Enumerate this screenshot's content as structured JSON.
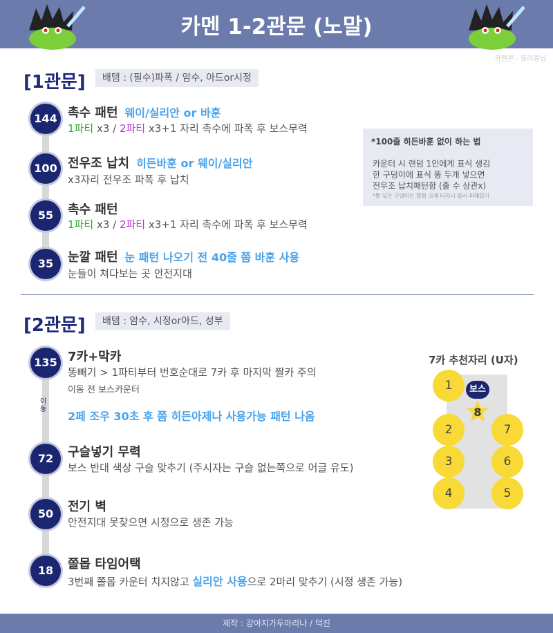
{
  "header": {
    "title": "카멘 1-2관문 (노말)",
    "credit": "카멘콘 - 또리콩님"
  },
  "gate1": {
    "title": "[1관문]",
    "equip": "배템 : (필수)파폭 / 암수, 아드or시정",
    "patterns": [
      {
        "hp": "144",
        "title": "촉수 패턴",
        "note": "웨이/실리안 or 바훈",
        "line_p1": "1파티",
        "line_mid": " x3 / ",
        "line_p2": "2파티",
        "line_rest": " x3+1 자리 촉수에 파폭 후 보스무력"
      },
      {
        "hp": "100",
        "title": "전우조 납치",
        "note": "히든바훈 or 웨이/실리안",
        "line": "x3자리 전우조 파폭 후 납치"
      },
      {
        "hp": "55",
        "title": "촉수 패턴",
        "line_p1": "1파티",
        "line_mid": " x3 / ",
        "line_p2": "2파티",
        "line_rest": " x3+1 자리 촉수에 파폭 후 보스무력"
      },
      {
        "hp": "35",
        "title": "눈깔 패턴",
        "note": "눈 패턴 나오기 전 40줄 쯤 바훈 사용",
        "line": "눈들이 쳐다보는 곳 안전지대"
      }
    ],
    "side": {
      "title": "*100줄 히든바훈 없이 하는 법",
      "lines": [
        "카운터 시 랜덤 1인에게 표식 생김",
        "한 구덩이에 표식 똥 두개 넣으면",
        "전우조 납치패턴함 (줄 수 상관x)"
      ],
      "small": "*똥 넣은 구덩이는 엄청 크게 터지니 잠시 피해있기"
    }
  },
  "gate2": {
    "title": "[2관문]",
    "equip": "배템 : 암수, 시정or아드, 성부",
    "move_label": "이동",
    "patterns": [
      {
        "hp": "135",
        "title": "7카+막카",
        "line1": "똥빼기 > 1파티부터 번호순대로 7카 후 마지막 짤카 주의",
        "line2": "이동 전 보스카운터",
        "line3": "2페 조우 30초 후 쯤 히든아제나 사용가능 패턴 나옴"
      },
      {
        "hp": "72",
        "title": "구슬넣기 무력",
        "line": "보스 반대 색상 구슬 맞추기 (주시자는 구슬 없는쪽으로 어글 유도)"
      },
      {
        "hp": "50",
        "title": "전기 벽",
        "line": "안전지대 못찾으면 시정으로 생존 가능"
      },
      {
        "hp": "18",
        "title": "쫄몹 타임어택",
        "line_a": "3번째 쫄몹 카운터 치지않고 ",
        "line_b": "실리안 사용",
        "line_c": "으로 2마리 맞추기 (시정 생존 가능)"
      }
    ],
    "seats": {
      "title": "7카 추천자리 (U자)",
      "boss": "보스",
      "numbers": [
        "1",
        "2",
        "3",
        "4",
        "5",
        "6",
        "7",
        "8"
      ]
    }
  },
  "footer": {
    "text": "제작 : 강아지가두마리나 / 덕진"
  },
  "colors": {
    "header": "#6b7bab",
    "navy": "#1a2670",
    "accent_blue": "#4aa3ea",
    "green": "#2aa82a",
    "purple": "#b43cc8",
    "seat_yellow": "#f9d935"
  },
  "icons": [
    "mascot-left-icon",
    "mascot-right-icon",
    "star-icon"
  ]
}
